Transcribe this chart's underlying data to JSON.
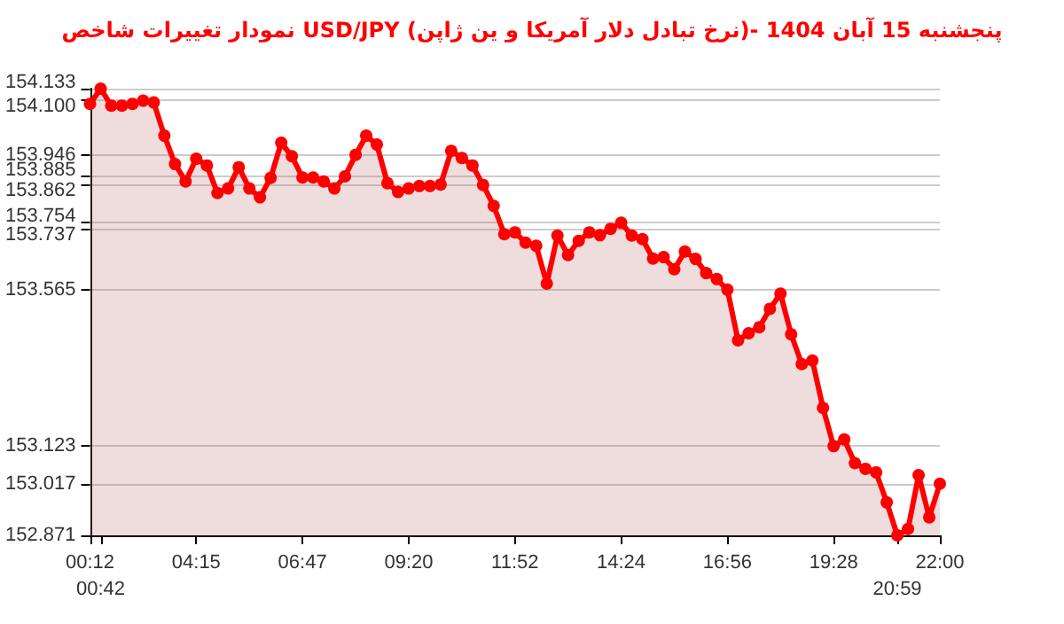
{
  "chart_data": {
    "type": "area",
    "title": "نمودار تغییرات شاخص USD/JPY (نرخ تبادل دلار آمریکا و ین ژاپن)- پنجشنبه 15 آبان 1404",
    "categories": [
      "00:12",
      "00:42",
      null,
      null,
      null,
      null,
      null,
      null,
      null,
      null,
      "04:15",
      null,
      null,
      null,
      null,
      null,
      null,
      null,
      null,
      null,
      "06:47",
      null,
      null,
      null,
      null,
      null,
      null,
      null,
      null,
      null,
      "09:20",
      null,
      null,
      null,
      null,
      null,
      null,
      null,
      null,
      null,
      "11:52",
      null,
      null,
      null,
      null,
      null,
      null,
      null,
      null,
      null,
      "14:24",
      null,
      null,
      null,
      null,
      null,
      null,
      null,
      null,
      null,
      "16:56",
      null,
      null,
      null,
      null,
      null,
      null,
      null,
      null,
      null,
      "19:28",
      null,
      null,
      null,
      null,
      null,
      "20:59",
      null,
      null,
      null,
      "22:00"
    ],
    "series": [
      {
        "color": "#ff0000",
        "values": [
          154.09,
          154.133,
          154.085,
          154.085,
          154.09,
          154.099,
          154.094,
          154.0,
          153.92,
          153.871,
          153.935,
          153.916,
          153.838,
          153.851,
          153.911,
          153.851,
          153.826,
          153.881,
          153.98,
          153.942,
          153.882,
          153.882,
          153.871,
          153.851,
          153.885,
          153.946,
          154.0,
          153.975,
          153.866,
          153.841,
          153.851,
          153.858,
          153.858,
          153.862,
          153.957,
          153.937,
          153.916,
          153.861,
          153.802,
          153.722,
          153.727,
          153.698,
          153.689,
          153.582,
          153.718,
          153.663,
          153.703,
          153.727,
          153.719,
          153.737,
          153.754,
          153.718,
          153.708,
          153.653,
          153.657,
          153.623,
          153.673,
          153.652,
          153.612,
          153.595,
          153.565,
          153.422,
          153.442,
          153.459,
          153.511,
          153.554,
          153.439,
          153.355,
          153.365,
          153.231,
          153.123,
          153.142,
          153.075,
          153.059,
          153.049,
          152.964,
          152.871,
          152.889,
          153.041,
          152.922,
          153.017
        ]
      }
    ],
    "ylim": [
      152.871,
      154.133
    ],
    "yticks": [
      152.871,
      153.017,
      153.123,
      153.565,
      153.737,
      153.754,
      153.862,
      153.885,
      153.946,
      {
        "value": 154.1,
        "label": "154.100"
      },
      154.133
    ],
    "grid": "y",
    "marker": "circle"
  }
}
